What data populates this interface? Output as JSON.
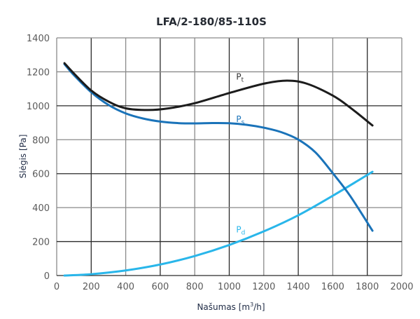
{
  "chart_data": {
    "type": "line",
    "title": "LFA/2-180/85-110S",
    "xlabel": "Našumas [m",
    "xlabel_sup": "3",
    "xlabel_tail": "/h]",
    "ylabel": "Slėgis [Pa]",
    "xlim": [
      0,
      2000
    ],
    "ylim": [
      0,
      1400
    ],
    "x_ticks": [
      "0",
      "200",
      "400",
      "600",
      "800",
      "1000",
      "1200",
      "1400",
      "1600",
      "1800",
      "2000"
    ],
    "y_ticks": [
      "0",
      "200",
      "400",
      "600",
      "800",
      "1000",
      "1200",
      "1400"
    ],
    "grid": true,
    "series": [
      {
        "name": "Pt",
        "label_main": "P",
        "label_sub": "t",
        "color": "#1c1c1c",
        "label_color": "#333333",
        "x": [
          45,
          100,
          200,
          300,
          400,
          530,
          650,
          800,
          1000,
          1200,
          1335,
          1450,
          1600,
          1700,
          1830
        ],
        "y": [
          1251,
          1190,
          1090,
          1025,
          985,
          975,
          985,
          1015,
          1075,
          1130,
          1148,
          1130,
          1060,
          990,
          884
        ]
      },
      {
        "name": "Ps",
        "label_main": "P",
        "label_sub": "s",
        "color": "#1a73b9",
        "label_color": "#1a73b9",
        "x": [
          45,
          100,
          200,
          300,
          400,
          500,
          600,
          700,
          800,
          900,
          1000,
          1100,
          1200,
          1300,
          1400,
          1500,
          1600,
          1700,
          1830
        ],
        "y": [
          1245,
          1180,
          1080,
          1005,
          955,
          925,
          907,
          898,
          896,
          898,
          897,
          888,
          871,
          845,
          801,
          725,
          603,
          470,
          264
        ]
      },
      {
        "name": "Pd",
        "label_main": "P",
        "label_sub": "d",
        "color": "#29b6ea",
        "label_color": "#29b6ea",
        "x": [
          45,
          200,
          400,
          600,
          800,
          1000,
          1200,
          1400,
          1600,
          1830
        ],
        "y": [
          0,
          8,
          30,
          65,
          115,
          180,
          260,
          355,
          470,
          611
        ]
      }
    ],
    "label_anchor": {
      "Pt": [
        1040,
        1155
      ],
      "Ps": [
        1040,
        905
      ],
      "Pd": [
        1040,
        255
      ]
    }
  }
}
